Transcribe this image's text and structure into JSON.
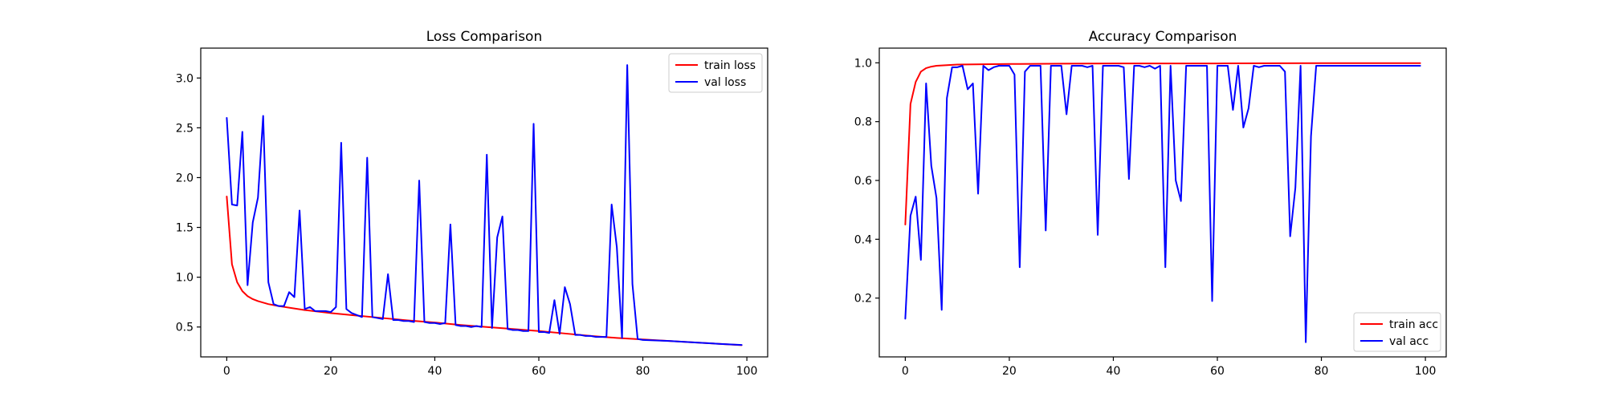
{
  "chart_data": [
    {
      "type": "line",
      "title": "Loss Comparison",
      "xlabel": "",
      "ylabel": "",
      "xlim": [
        -5,
        104
      ],
      "ylim": [
        0.2,
        3.3
      ],
      "xticks": [
        0,
        20,
        40,
        60,
        80,
        100
      ],
      "yticks": [
        0.5,
        1.0,
        1.5,
        2.0,
        2.5,
        3.0
      ],
      "ytick_labels": [
        "0.5",
        "1.0",
        "1.5",
        "2.0",
        "2.5",
        "3.0"
      ],
      "grid": false,
      "legend": "top-right",
      "series": [
        {
          "name": "train loss",
          "color": "#ff0000",
          "points": [
            [
              0,
              1.81
            ],
            [
              1,
              1.13
            ],
            [
              2,
              0.95
            ],
            [
              3,
              0.86
            ],
            [
              4,
              0.81
            ],
            [
              5,
              0.78
            ],
            [
              6,
              0.76
            ],
            [
              8,
              0.73
            ],
            [
              10,
              0.71
            ],
            [
              15,
              0.67
            ],
            [
              20,
              0.64
            ],
            [
              25,
              0.615
            ],
            [
              30,
              0.59
            ],
            [
              35,
              0.565
            ],
            [
              40,
              0.545
            ],
            [
              45,
              0.52
            ],
            [
              50,
              0.5
            ],
            [
              55,
              0.48
            ],
            [
              60,
              0.46
            ],
            [
              65,
              0.435
            ],
            [
              70,
              0.41
            ],
            [
              75,
              0.39
            ],
            [
              80,
              0.375
            ],
            [
              85,
              0.36
            ],
            [
              90,
              0.345
            ],
            [
              95,
              0.33
            ],
            [
              99,
              0.318
            ]
          ]
        },
        {
          "name": "val loss",
          "color": "#0000ff",
          "points": [
            [
              0,
              2.6
            ],
            [
              1,
              1.73
            ],
            [
              2,
              1.72
            ],
            [
              3,
              2.46
            ],
            [
              4,
              0.92
            ],
            [
              5,
              1.55
            ],
            [
              6,
              1.8
            ],
            [
              7,
              2.62
            ],
            [
              8,
              0.95
            ],
            [
              9,
              0.73
            ],
            [
              10,
              0.71
            ],
            [
              11,
              0.71
            ],
            [
              12,
              0.85
            ],
            [
              13,
              0.8
            ],
            [
              14,
              1.67
            ],
            [
              15,
              0.68
            ],
            [
              16,
              0.7
            ],
            [
              17,
              0.66
            ],
            [
              18,
              0.66
            ],
            [
              19,
              0.66
            ],
            [
              20,
              0.65
            ],
            [
              21,
              0.7
            ],
            [
              22,
              2.35
            ],
            [
              23,
              0.68
            ],
            [
              24,
              0.64
            ],
            [
              25,
              0.62
            ],
            [
              26,
              0.6
            ],
            [
              27,
              2.2
            ],
            [
              28,
              0.6
            ],
            [
              29,
              0.59
            ],
            [
              30,
              0.58
            ],
            [
              31,
              1.03
            ],
            [
              32,
              0.57
            ],
            [
              33,
              0.57
            ],
            [
              34,
              0.56
            ],
            [
              35,
              0.56
            ],
            [
              36,
              0.55
            ],
            [
              37,
              1.97
            ],
            [
              38,
              0.55
            ],
            [
              39,
              0.54
            ],
            [
              40,
              0.54
            ],
            [
              41,
              0.53
            ],
            [
              42,
              0.54
            ],
            [
              43,
              1.53
            ],
            [
              44,
              0.52
            ],
            [
              45,
              0.51
            ],
            [
              46,
              0.51
            ],
            [
              47,
              0.5
            ],
            [
              48,
              0.51
            ],
            [
              49,
              0.5
            ],
            [
              50,
              2.23
            ],
            [
              51,
              0.49
            ],
            [
              52,
              1.4
            ],
            [
              53,
              1.61
            ],
            [
              54,
              0.48
            ],
            [
              55,
              0.47
            ],
            [
              56,
              0.47
            ],
            [
              57,
              0.46
            ],
            [
              58,
              0.46
            ],
            [
              59,
              2.54
            ],
            [
              60,
              0.45
            ],
            [
              61,
              0.45
            ],
            [
              62,
              0.44
            ],
            [
              63,
              0.77
            ],
            [
              64,
              0.43
            ],
            [
              65,
              0.9
            ],
            [
              66,
              0.73
            ],
            [
              67,
              0.42
            ],
            [
              68,
              0.42
            ],
            [
              69,
              0.41
            ],
            [
              70,
              0.41
            ],
            [
              71,
              0.4
            ],
            [
              72,
              0.4
            ],
            [
              73,
              0.4
            ],
            [
              74,
              1.73
            ],
            [
              75,
              1.3
            ],
            [
              76,
              0.39
            ],
            [
              77,
              3.13
            ],
            [
              78,
              0.93
            ],
            [
              79,
              0.38
            ],
            [
              80,
              0.37
            ],
            [
              85,
              0.36
            ],
            [
              90,
              0.345
            ],
            [
              95,
              0.33
            ],
            [
              99,
              0.32
            ]
          ]
        }
      ]
    },
    {
      "type": "line",
      "title": "Accuracy Comparison",
      "xlabel": "",
      "ylabel": "",
      "xlim": [
        -5,
        104
      ],
      "ylim": [
        0.0,
        1.05
      ],
      "xticks": [
        0,
        20,
        40,
        60,
        80,
        100
      ],
      "yticks": [
        0.2,
        0.4,
        0.6,
        0.8,
        1.0
      ],
      "ytick_labels": [
        "0.2",
        "0.4",
        "0.6",
        "0.8",
        "1.0"
      ],
      "grid": false,
      "legend": "bottom-right",
      "series": [
        {
          "name": "train acc",
          "color": "#ff0000",
          "points": [
            [
              0,
              0.45
            ],
            [
              1,
              0.86
            ],
            [
              2,
              0.935
            ],
            [
              3,
              0.97
            ],
            [
              4,
              0.982
            ],
            [
              5,
              0.987
            ],
            [
              6,
              0.99
            ],
            [
              8,
              0.992
            ],
            [
              10,
              0.994
            ],
            [
              15,
              0.995
            ],
            [
              20,
              0.996
            ],
            [
              30,
              0.997
            ],
            [
              40,
              0.998
            ],
            [
              60,
              0.998
            ],
            [
              80,
              0.999
            ],
            [
              99,
              0.999
            ]
          ]
        },
        {
          "name": "val acc",
          "color": "#0000ff",
          "points": [
            [
              0,
              0.13
            ],
            [
              1,
              0.48
            ],
            [
              2,
              0.545
            ],
            [
              3,
              0.33
            ],
            [
              4,
              0.93
            ],
            [
              5,
              0.65
            ],
            [
              6,
              0.54
            ],
            [
              7,
              0.16
            ],
            [
              8,
              0.88
            ],
            [
              9,
              0.985
            ],
            [
              10,
              0.985
            ],
            [
              11,
              0.99
            ],
            [
              12,
              0.91
            ],
            [
              13,
              0.93
            ],
            [
              14,
              0.555
            ],
            [
              15,
              0.99
            ],
            [
              16,
              0.975
            ],
            [
              17,
              0.985
            ],
            [
              18,
              0.99
            ],
            [
              19,
              0.99
            ],
            [
              20,
              0.99
            ],
            [
              21,
              0.96
            ],
            [
              22,
              0.305
            ],
            [
              23,
              0.97
            ],
            [
              24,
              0.99
            ],
            [
              25,
              0.99
            ],
            [
              26,
              0.99
            ],
            [
              27,
              0.43
            ],
            [
              28,
              0.99
            ],
            [
              29,
              0.99
            ],
            [
              30,
              0.99
            ],
            [
              31,
              0.825
            ],
            [
              32,
              0.99
            ],
            [
              33,
              0.99
            ],
            [
              34,
              0.99
            ],
            [
              35,
              0.985
            ],
            [
              36,
              0.99
            ],
            [
              37,
              0.415
            ],
            [
              38,
              0.99
            ],
            [
              39,
              0.99
            ],
            [
              40,
              0.99
            ],
            [
              41,
              0.99
            ],
            [
              42,
              0.985
            ],
            [
              43,
              0.605
            ],
            [
              44,
              0.99
            ],
            [
              45,
              0.99
            ],
            [
              46,
              0.985
            ],
            [
              47,
              0.99
            ],
            [
              48,
              0.98
            ],
            [
              49,
              0.99
            ],
            [
              50,
              0.305
            ],
            [
              51,
              0.99
            ],
            [
              52,
              0.6
            ],
            [
              53,
              0.53
            ],
            [
              54,
              0.99
            ],
            [
              55,
              0.99
            ],
            [
              56,
              0.99
            ],
            [
              57,
              0.99
            ],
            [
              58,
              0.99
            ],
            [
              59,
              0.19
            ],
            [
              60,
              0.99
            ],
            [
              61,
              0.99
            ],
            [
              62,
              0.99
            ],
            [
              63,
              0.84
            ],
            [
              64,
              0.99
            ],
            [
              65,
              0.78
            ],
            [
              66,
              0.845
            ],
            [
              67,
              0.99
            ],
            [
              68,
              0.985
            ],
            [
              69,
              0.99
            ],
            [
              70,
              0.99
            ],
            [
              71,
              0.99
            ],
            [
              72,
              0.99
            ],
            [
              73,
              0.97
            ],
            [
              74,
              0.41
            ],
            [
              75,
              0.575
            ],
            [
              76,
              0.99
            ],
            [
              77,
              0.05
            ],
            [
              78,
              0.75
            ],
            [
              79,
              0.99
            ],
            [
              80,
              0.99
            ],
            [
              90,
              0.99
            ],
            [
              95,
              0.99
            ],
            [
              99,
              0.99
            ]
          ]
        }
      ]
    }
  ]
}
